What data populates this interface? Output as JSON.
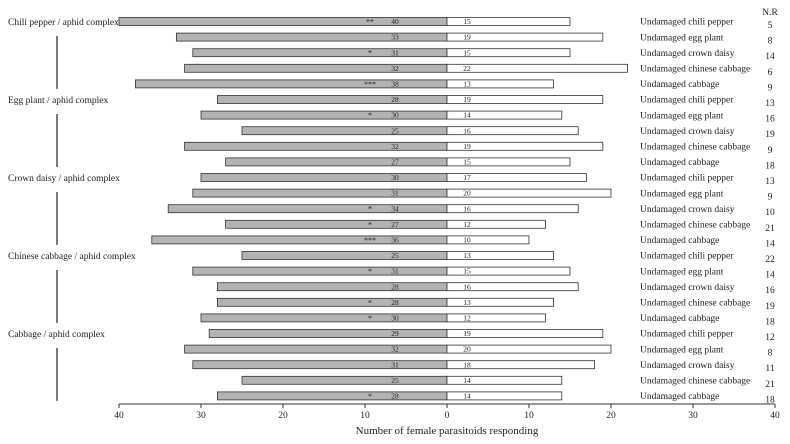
{
  "chart_data": {
    "type": "bar",
    "orientation": "horizontal-diverging",
    "xlabel": "Number of female parasitoids responding",
    "x_ticks": [
      "40",
      "30",
      "20",
      "10",
      "0",
      "10",
      "20",
      "30",
      "40"
    ],
    "xlim": [
      -40,
      40
    ],
    "nr_header": "N.R",
    "colors": {
      "left_bar": "#b3b3b3",
      "right_bar": "#ffffff",
      "stroke": "#333333"
    },
    "groups": [
      {
        "label": "Chili pepper / aphid complex",
        "first_row": 0,
        "last_row": 4
      },
      {
        "label": "Egg plant / aphid complex",
        "first_row": 5,
        "last_row": 9
      },
      {
        "label": "Crown daisy / aphid complex",
        "first_row": 10,
        "last_row": 14
      },
      {
        "label": "Chinese cabbage / aphid complex",
        "first_row": 15,
        "last_row": 19
      },
      {
        "label": "Cabbage / aphid complex",
        "first_row": 20,
        "last_row": 24
      }
    ],
    "rows": [
      {
        "label": "Undamaged chili pepper",
        "left": 40,
        "right": 15,
        "sig": "**",
        "nr": "5"
      },
      {
        "label": "Undamaged egg plant",
        "left": 33,
        "right": 19,
        "sig": "",
        "nr": "8"
      },
      {
        "label": "Undamaged crown daisy",
        "left": 31,
        "right": 15,
        "sig": "*",
        "nr": "14"
      },
      {
        "label": "Undamaged chinese cabbage",
        "left": 32,
        "right": 22,
        "sig": "",
        "nr": "6"
      },
      {
        "label": "Undamaged cabbage",
        "left": 38,
        "right": 13,
        "sig": "***",
        "nr": "9"
      },
      {
        "label": "Undamaged chili pepper",
        "left": 28,
        "right": 19,
        "sig": "",
        "nr": "13"
      },
      {
        "label": "Undamaged egg plant",
        "left": 30,
        "right": 14,
        "sig": "*",
        "nr": "16"
      },
      {
        "label": "Undamaged crown daisy",
        "left": 25,
        "right": 16,
        "sig": "",
        "nr": "19"
      },
      {
        "label": "Undamaged chinese cabbage",
        "left": 32,
        "right": 19,
        "sig": "",
        "nr": "9"
      },
      {
        "label": "Undamaged cabbage",
        "left": 27,
        "right": 15,
        "sig": "",
        "nr": "18"
      },
      {
        "label": "Undamaged chili pepper",
        "left": 30,
        "right": 17,
        "sig": "",
        "nr": "13"
      },
      {
        "label": "Undamaged egg plant",
        "left": 31,
        "right": 20,
        "sig": "",
        "nr": "9"
      },
      {
        "label": "Undamaged crown daisy",
        "left": 34,
        "right": 16,
        "sig": "*",
        "nr": "10"
      },
      {
        "label": "Undamaged chinese cabbage",
        "left": 27,
        "right": 12,
        "sig": "*",
        "nr": "21"
      },
      {
        "label": "Undamaged cabbage",
        "left": 36,
        "right": 10,
        "sig": "***",
        "nr": "14"
      },
      {
        "label": "Undamaged chili pepper",
        "left": 25,
        "right": 13,
        "sig": "",
        "nr": "22"
      },
      {
        "label": "Undamaged egg plant",
        "left": 31,
        "right": 15,
        "sig": "*",
        "nr": "14"
      },
      {
        "label": "Undamaged crown daisy",
        "left": 28,
        "right": 16,
        "sig": "",
        "nr": "16"
      },
      {
        "label": "Undamaged chinese cabbage",
        "left": 28,
        "right": 13,
        "sig": "*",
        "nr": "19"
      },
      {
        "label": "Undamaged cabbage",
        "left": 30,
        "right": 12,
        "sig": "*",
        "nr": "18"
      },
      {
        "label": "Undamaged chili pepper",
        "left": 29,
        "right": 19,
        "sig": "",
        "nr": "12"
      },
      {
        "label": "Undamaged egg plant",
        "left": 32,
        "right": 20,
        "sig": "",
        "nr": "8"
      },
      {
        "label": "Undamaged crown daisy",
        "left": 31,
        "right": 18,
        "sig": "",
        "nr": "11"
      },
      {
        "label": "Undamaged chinese cabbage",
        "left": 25,
        "right": 14,
        "sig": "",
        "nr": "21"
      },
      {
        "label": "Undamaged cabbage",
        "left": 28,
        "right": 14,
        "sig": "*",
        "nr": "18"
      }
    ]
  }
}
